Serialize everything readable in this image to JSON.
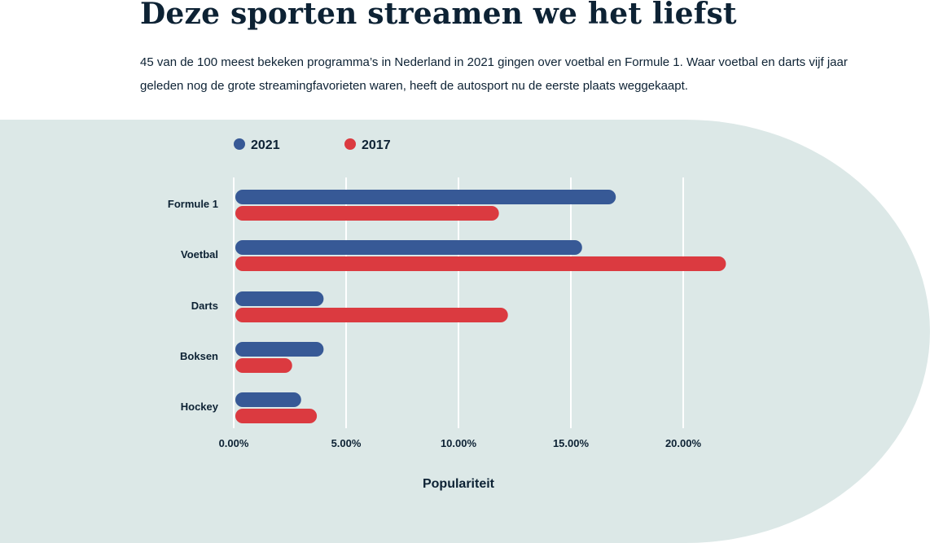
{
  "header": {
    "title": "Deze sporten streamen we het liefst",
    "intro": "45 van de 100 meest bekeken programma’s in Nederland in 2021 gingen over voetbal en Formule 1. Waar voetbal en darts vijf jaar geleden nog de grote streamingfavorieten waren, heeft de autosport nu de eerste plaats weggekaapt."
  },
  "chart_data": {
    "type": "bar",
    "orientation": "horizontal",
    "categories": [
      "Formule 1",
      "Voetbal",
      "Darts",
      "Boksen",
      "Hockey"
    ],
    "series": [
      {
        "name": "2021",
        "color": "#375996",
        "values": [
          17.0,
          15.5,
          4.0,
          4.0,
          3.0
        ]
      },
      {
        "name": "2017",
        "color": "#db3a40",
        "values": [
          11.8,
          21.9,
          12.2,
          2.6,
          3.7
        ]
      }
    ],
    "xlabel": "Populariteit",
    "xlim": [
      0,
      22
    ],
    "xticks": [
      0,
      5,
      10,
      15,
      20
    ],
    "xtick_labels": [
      "0.00%",
      "5.00%",
      "10.00%",
      "15.00%",
      "20.00%"
    ],
    "grid": true,
    "legend": "top-left"
  }
}
